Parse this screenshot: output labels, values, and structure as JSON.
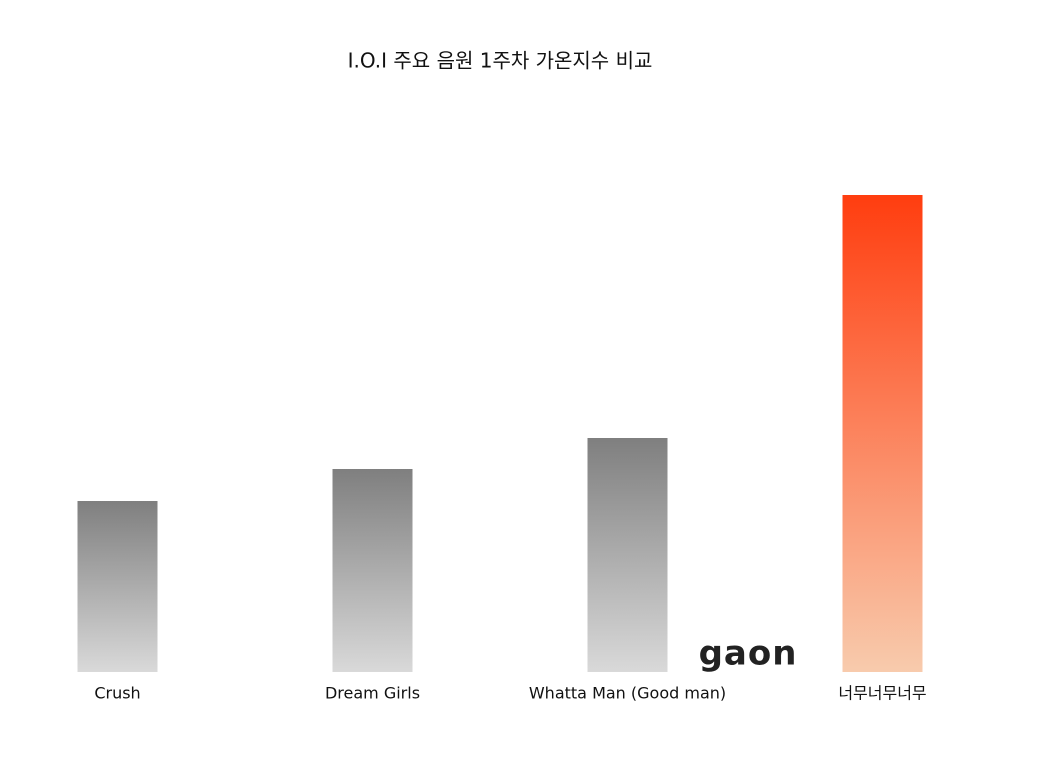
{
  "chart_data": {
    "type": "bar",
    "title": "I.O.I 주요 음원 1주차 가온지수 비교",
    "categories": [
      "Crush",
      "Dream Girls",
      "Whatta Man (Good man)",
      "너무너무너무"
    ],
    "values": [
      171,
      203,
      234,
      477
    ],
    "colors": [
      [
        "#7f7f7f",
        "#d9d9d9"
      ],
      [
        "#7f7f7f",
        "#d9d9d9"
      ],
      [
        "#7f7f7f",
        "#d9d9d9"
      ],
      [
        "#ff3d0f",
        "#f8cbad"
      ]
    ],
    "ylim": [
      0,
      500
    ],
    "grid": false,
    "logo": "gaon"
  }
}
